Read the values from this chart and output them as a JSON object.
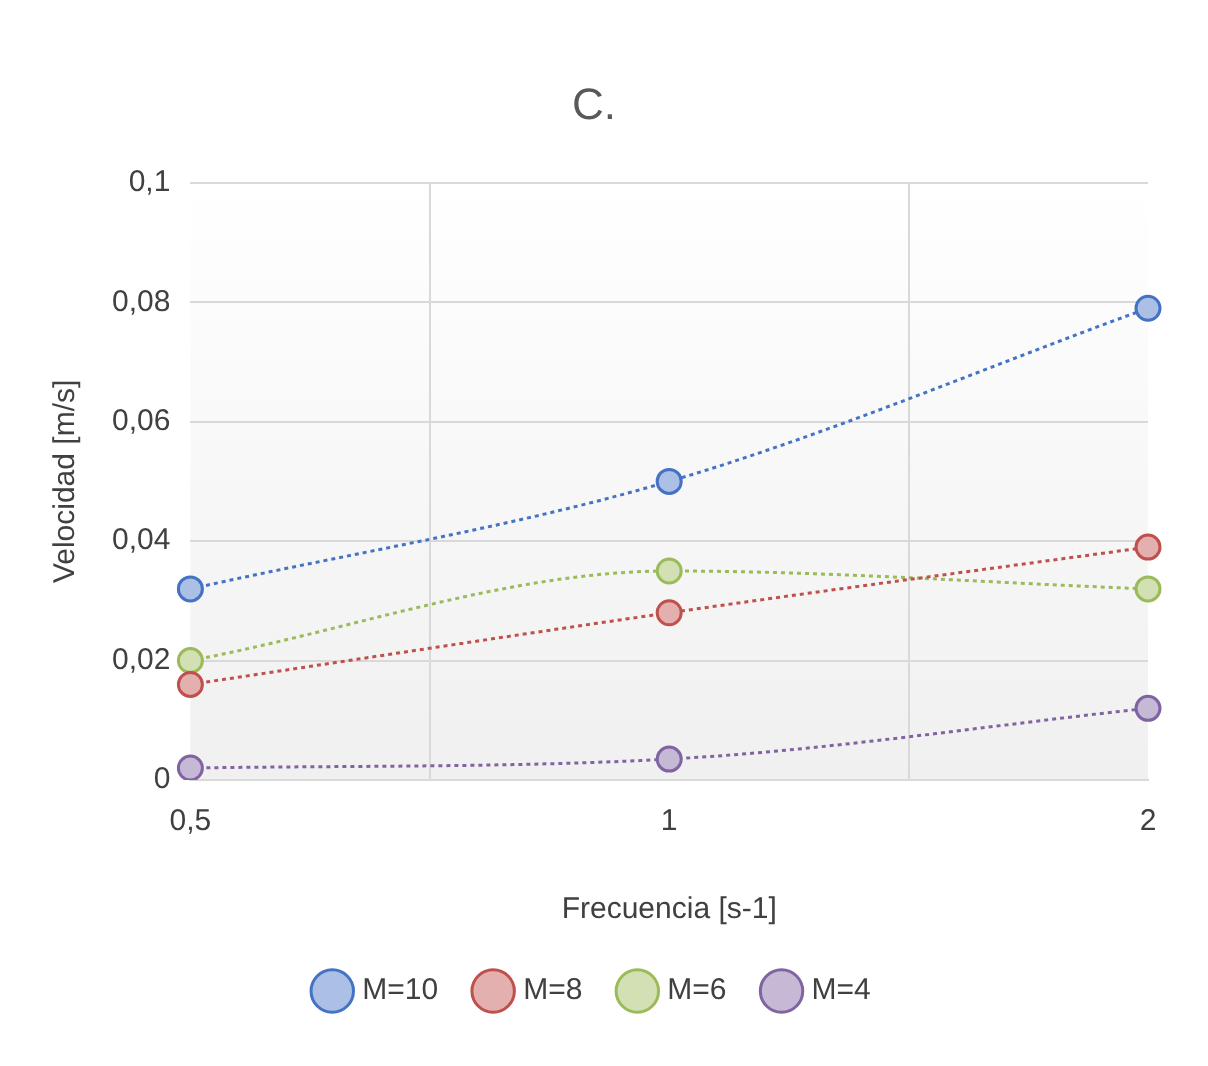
{
  "chart_data": {
    "type": "line",
    "title": "C.",
    "xlabel": "Frecuencia [s-1]",
    "ylabel": "Velocidad [m/s]",
    "categories": [
      "0,5",
      "1",
      "2"
    ],
    "series": [
      {
        "name": "M=10",
        "color": "#4472c4",
        "values": [
          0.032,
          0.05,
          0.079
        ]
      },
      {
        "name": "M=8",
        "color": "#c0504d",
        "values": [
          0.016,
          0.028,
          0.039
        ]
      },
      {
        "name": "M=6",
        "color": "#9bbb59",
        "values": [
          0.02,
          0.035,
          0.032
        ]
      },
      {
        "name": "M=4",
        "color": "#8064a2",
        "values": [
          0.002,
          0.0035,
          0.012
        ]
      }
    ],
    "ylim": [
      0,
      0.1
    ],
    "yticks": [
      {
        "value": 0,
        "label": "0"
      },
      {
        "value": 0.02,
        "label": "0,02"
      },
      {
        "value": 0.04,
        "label": "0,04"
      },
      {
        "value": 0.06,
        "label": "0,06"
      },
      {
        "value": 0.08,
        "label": "0,08"
      },
      {
        "value": 0.1,
        "label": "0,1"
      }
    ],
    "grid": true,
    "legend": "bottom",
    "marker": "circle",
    "line_style": "dotted"
  }
}
